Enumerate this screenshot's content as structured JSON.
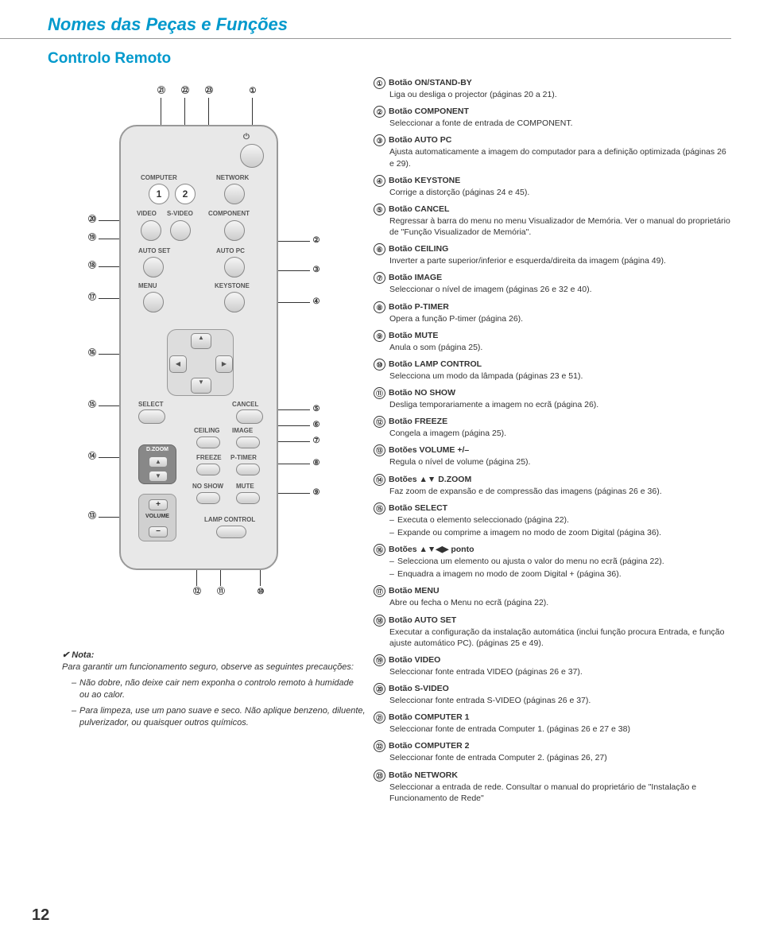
{
  "page": {
    "title": "Nomes das Peças e Funções",
    "section": "Controlo Remoto",
    "pageNumber": "12"
  },
  "remote": {
    "labels": {
      "computer": "COMPUTER",
      "network": "NETWORK",
      "num1": "1",
      "num2": "2",
      "video": "VIDEO",
      "svideo": "S-VIDEO",
      "component": "COMPONENT",
      "autoset": "AUTO SET",
      "autopc": "AUTO PC",
      "menu": "MENU",
      "keystone": "KEYSTONE",
      "select": "SELECT",
      "cancel": "CANCEL",
      "ceiling": "CEILING",
      "image": "IMAGE",
      "freeze": "FREEZE",
      "ptimer": "P-TIMER",
      "noshow": "NO SHOW",
      "mute": "MUTE",
      "lampcontrol": "LAMP CONTROL",
      "dzoom": "D.ZOOM",
      "volume": "VOLUME",
      "power": "⏻"
    },
    "calloutsTop": {
      "c21": "㉑",
      "c22": "㉒",
      "c23": "㉓",
      "c1": "①"
    },
    "calloutsRight": {
      "c2": "②",
      "c3": "③",
      "c4": "④",
      "c5": "⑤",
      "c6": "⑥",
      "c7": "⑦",
      "c8": "⑧",
      "c9": "⑨"
    },
    "calloutsLeft": {
      "c20": "⑳",
      "c19": "⑲",
      "c18": "⑱",
      "c17": "⑰",
      "c16": "⑯",
      "c15": "⑮",
      "c14": "⑭",
      "c13": "⑬"
    },
    "calloutsBottom": {
      "c12": "⑫",
      "c11": "⑪",
      "c10": "⑩"
    }
  },
  "note": {
    "heading": "✔ Nota:",
    "intro": "Para garantir um funcionamento seguro, observe as seguintes precauções:",
    "li1": "Não dobre, não deixe cair nem exponha o controlo remoto à humidade ou ao calor.",
    "li2": "Para limpeza, use um pano suave e seco. Não aplique benzeno, diluente, pulverizador, ou quaisquer outros químicos."
  },
  "items": [
    {
      "n": "①",
      "t": "Botão ON/STAND-BY",
      "d": "Liga ou desliga o projector (páginas 20 a 21)."
    },
    {
      "n": "②",
      "t": "Botão COMPONENT",
      "d": "Seleccionar a fonte de entrada de COMPONENT."
    },
    {
      "n": "③",
      "t": "Botão AUTO PC",
      "d": "Ajusta automaticamente a imagem do computador para a definição optimizada (páginas 26 e 29)."
    },
    {
      "n": "④",
      "t": "Botão KEYSTONE",
      "d": "Corrige a distorção (páginas 24 e 45)."
    },
    {
      "n": "⑤",
      "t": "Botão CANCEL",
      "d": "Regressar à barra do menu no menu Visualizador de Memória. Ver o manual do proprietário de \"Função Visualizador de Memória\"."
    },
    {
      "n": "⑥",
      "t": "Botão CEILING",
      "d": "Inverter a parte superior/inferior e esquerda/direita da imagem (página 49)."
    },
    {
      "n": "⑦",
      "t": "Botão IMAGE",
      "d": "Seleccionar o nível de imagem (páginas 26 e 32 e 40)."
    },
    {
      "n": "⑧",
      "t": "Botão P-TIMER",
      "d": "Opera a função P-timer (página 26)."
    },
    {
      "n": "⑨",
      "t": "Botão MUTE",
      "d": "Anula o som (página 25)."
    },
    {
      "n": "⑩",
      "t": "Botão LAMP CONTROL",
      "d": "Selecciona um modo da lâmpada (páginas 23 e 51)."
    },
    {
      "n": "⑪",
      "t": "Botão NO SHOW",
      "d": "Desliga temporariamente a imagem no ecrã (página 26)."
    },
    {
      "n": "⑫",
      "t": "Botão FREEZE",
      "d": "Congela a imagem (página 25)."
    },
    {
      "n": "⑬",
      "t": "Botões VOLUME +/–",
      "d": "Regula o nível de volume (página 25)."
    },
    {
      "n": "⑭",
      "t": "Botões ▲▼ D.ZOOM",
      "d": "Faz zoom de expansão e de compressão das imagens (páginas 26 e 36)."
    },
    {
      "n": "⑮",
      "t": "Botão SELECT",
      "sub": [
        "Executa o elemento seleccionado (página 22).",
        "Expande ou comprime a imagem no modo de zoom Digital (página 36)."
      ]
    },
    {
      "n": "⑯",
      "t": "Botões ▲▼◀▶ ponto",
      "sub": [
        "Selecciona um elemento ou ajusta o valor do menu no ecrã (página 22).",
        "Enquadra a imagem no modo de zoom Digital + (página 36)."
      ]
    },
    {
      "n": "⑰",
      "t": "Botão MENU",
      "d": "Abre ou fecha o Menu no ecrã (página 22)."
    },
    {
      "n": "⑱",
      "t": "Botão AUTO SET",
      "d": "Executar a configuração da instalação automática (inclui função procura Entrada, e função ajuste automático PC). (páginas 25 e 49)."
    },
    {
      "n": "⑲",
      "t": "Botão VIDEO",
      "d": "Seleccionar fonte entrada VIDEO (páginas 26 e 37)."
    },
    {
      "n": "⑳",
      "t": "Botão S-VIDEO",
      "d": "Seleccionar fonte entrada S-VIDEO (páginas 26 e 37)."
    },
    {
      "n": "㉑",
      "t": "Botão COMPUTER 1",
      "d": "Seleccionar fonte de entrada Computer 1. (páginas 26 e 27 e 38)"
    },
    {
      "n": "㉒",
      "t": "Botão COMPUTER 2",
      "d": "Seleccionar fonte de entrada Computer 2. (páginas 26, 27)"
    },
    {
      "n": "㉓",
      "t": "Botão NETWORK",
      "d": "Seleccionar a entrada de rede. Consultar o manual do proprietário de \"Instalação e Funcionamento de Rede\""
    }
  ]
}
